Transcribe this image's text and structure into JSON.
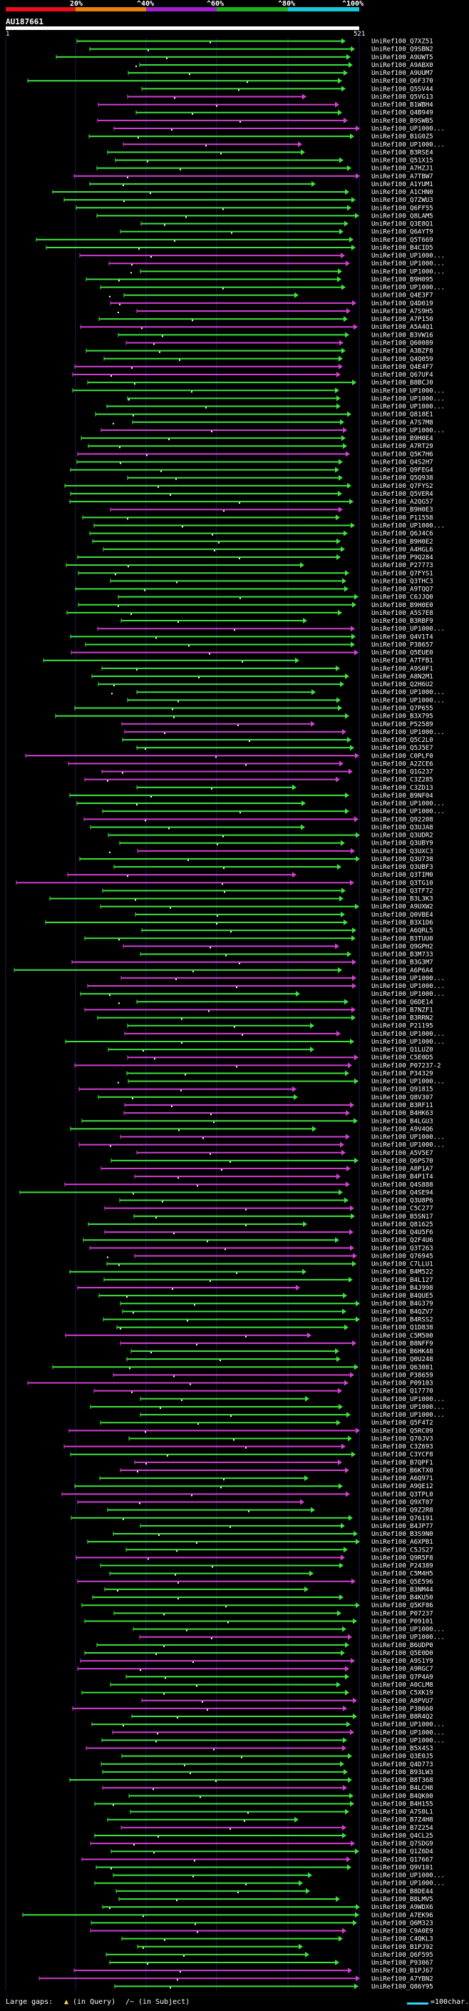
{
  "header": {
    "scale_labels": [
      "20%",
      "^40%",
      "^60%",
      "^80%",
      "^100%"
    ],
    "scale_colors": [
      "#e8101b",
      "#e8800c",
      "#a020d0",
      "#20b020",
      "#18c8d8"
    ],
    "query_id": "AU187661",
    "query_start": "1",
    "query_end": "521"
  },
  "legend": {
    "large_gaps_label": "Large gaps:",
    "query_gap_label": "(in Query)",
    "subject_gap_label": "(in Subject)",
    "scale_label": "=100char."
  },
  "colors": {
    "green": "#3ee23e",
    "magenta": "#d040d0",
    "grid": "#1a1a55",
    "arrow": "#3ee23e"
  },
  "hits": [
    "UniRef100_Q7XZ51",
    "UniRef100_Q9SBN2",
    "UniRef100_A9UWT5",
    "UniRef100_A9ABX0",
    "UniRef100_A9UUM7",
    "UniRef100_Q6F370",
    "UniRef100_Q5SV44",
    "UniRef100_Q5VG13",
    "UniRef100_B1WBH4",
    "UniRef100_Q4B949",
    "UniRef100_B9SWB5",
    "UniRef100_UP1000...",
    "UniRef100_B1G0Z5",
    "UniRef100_UP1000...",
    "UniRef100_B3RSE4",
    "UniRef100_Q51X15",
    "UniRef100_A7HZJ1",
    "UniRef100_A7TBW7",
    "UniRef100_A1YUM1",
    "UniRef100_A1CHN0",
    "UniRef100_Q7ZWU3",
    "UniRef100_Q6FF55",
    "UniRef100_Q8LAM5",
    "UniRef100_Q3E8Q1",
    "UniRef100_Q6AYT9",
    "UniRef100_Q5T669",
    "UniRef100_B4CID5",
    "UniRef100_UP1000...",
    "UniRef100_UP1000...",
    "UniRef100_UP1000...",
    "UniRef100_B9H095",
    "UniRef100_UP1000...",
    "UniRef100_Q4E3F7",
    "UniRef100_Q4D019",
    "UniRef100_A7S9H5",
    "UniRef100_A7P150",
    "UniRef100_A5A4Q1",
    "UniRef100_B3VW16",
    "UniRef100_Q60089",
    "UniRef100_A3BZF8",
    "UniRef100_Q4Q059",
    "UniRef100_Q4E4F7",
    "UniRef100_Q67UF4",
    "UniRef100_B8BCJ0",
    "UniRef100_UP1000...",
    "UniRef100_UP1000...",
    "UniRef100_UP1000...",
    "UniRef100_Q818E1",
    "UniRef100_A7S7M8",
    "UniRef100_UP1000...",
    "UniRef100_B9H0E4",
    "UniRef100_A7RT29",
    "UniRef100_Q5K7H6",
    "UniRef100_Q4S2H7",
    "UniRef100_Q9FEG4",
    "UniRef100_Q5Q938",
    "UniRef100_Q7FYS2",
    "UniRef100_Q5VER4",
    "UniRef100_A2QG57",
    "UniRef100_B9H0E3",
    "UniRef100_P11558",
    "UniRef100_UP1000...",
    "UniRef100_Q6J4C6",
    "UniRef100_B9H0E2",
    "UniRef100_A4HGL6",
    "UniRef100_P9Q284",
    "UniRef100_P27773",
    "UniRef100_Q7FYS1",
    "UniRef100_Q3THC3",
    "UniRef100_A9TQQ7",
    "UniRef100_C6JJQ0",
    "UniRef100_B9H0E0",
    "UniRef100_A5S7E8",
    "UniRef100_B3RBF9",
    "UniRef100_UP1000...",
    "UniRef100_Q4V1T4",
    "UniRef100_P38657",
    "UniRef100_Q5EUE0",
    "UniRef100_A7TFB1",
    "UniRef100_A9S0F1",
    "UniRef100_A8N2M1",
    "UniRef100_Q2H6U2",
    "UniRef100_UP1000...",
    "UniRef100_UP1000...",
    "UniRef100_Q7P655",
    "UniRef100_B3X795",
    "UniRef100_P52589",
    "UniRef100_UP1000...",
    "UniRef100_Q5C2L0",
    "UniRef100_Q5J5E7",
    "UniRef100_C0PLF0",
    "UniRef100_A2ZCE6",
    "UniRef100_Q1G237",
    "UniRef100_C3Z285",
    "UniRef100_C3ZD13",
    "UniRef100_B9NF04",
    "UniRef100_UP1000...",
    "UniRef100_UP1000...",
    "UniRef100_Q92208",
    "UniRef100_Q3UJA8",
    "UniRef100_Q3UDR2",
    "UniRef100_Q3UBY9",
    "UniRef100_Q3UXC3",
    "UniRef100_Q3U738",
    "UniRef100_Q3UBF3",
    "UniRef100_Q3TIM0",
    "UniRef100_Q3TG10",
    "UniRef100_Q3TF72",
    "UniRef100_B3L3K3",
    "UniRef100_A9UXW2",
    "UniRef100_Q0VBE4",
    "UniRef100_B3X1D6",
    "UniRef100_A6QRL5",
    "UniRef100_B3TUU0",
    "UniRef100_Q9GPH2",
    "UniRef100_B3M733",
    "UniRef100_B3G3M7",
    "UniRef100_A6P6A4",
    "UniRef100_UP1000...",
    "UniRef100_UP1000...",
    "UniRef100_UP1000...",
    "UniRef100_Q6DE14",
    "UniRef100_B7NZF1",
    "UniRef100_B3RRN2",
    "UniRef100_P21195",
    "UniRef100_UP1000...",
    "UniRef100_UP1000...",
    "UniRef100_Q1LUZ0",
    "UniRef100_C5E0D5",
    "UniRef100_P07237-2",
    "UniRef100_P34329",
    "UniRef100_UP1000...",
    "UniRef100_Q91815",
    "UniRef100_Q8V307",
    "UniRef100_B3RF11",
    "UniRef100_B4HK63",
    "UniRef100_B4LGU3",
    "UniRef100_A9V4Q6",
    "UniRef100_UP1000...",
    "UniRef100_UP1000...",
    "UniRef100_A5V5E7",
    "UniRef100_Q6PS70",
    "UniRef100_A8P1A7",
    "UniRef100_B4P1T4",
    "UniRef100_Q4S888",
    "UniRef100_Q4SE94",
    "UniRef100_Q3U8P6",
    "UniRef100_C5C277",
    "UniRef100_B5SN17",
    "UniRef100_Q81625",
    "UniRef100_Q4U5F6",
    "UniRef100_Q2F4U6",
    "UniRef100_Q3T263",
    "UniRef100_Q76945",
    "UniRef100_C7LLU1",
    "UniRef100_B4M522",
    "UniRef100_B4L127",
    "UniRef100_B4J998",
    "UniRef100_B4QUE5",
    "UniRef100_B4G379",
    "UniRef100_B4QZV7",
    "UniRef100_B4RSS2",
    "UniRef100_Q1D838",
    "UniRef100_C5M500",
    "UniRef100_B8NFF9",
    "UniRef100_B6HK48",
    "UniRef100_Q0U248",
    "UniRef100_Q63081",
    "UniRef100_P38659",
    "UniRef100_P09103",
    "UniRef100_Q17770",
    "UniRef100_UP1000...",
    "UniRef100_UP1000...",
    "UniRef100_UP1000...",
    "UniRef100_Q5F4T2",
    "UniRef100_Q5RC09",
    "UniRef100_Q70JV3",
    "UniRef100_C3Z693",
    "UniRef100_C3YCF8",
    "UniRef100_B7QPF1",
    "UniRef100_B6KTX0",
    "UniRef100_A6Q971",
    "UniRef100_A9QE12",
    "UniRef100_Q3TPL0",
    "UniRef100_Q9XT07",
    "UniRef100_Q9Z2R8",
    "UniRef100_Q76191",
    "UniRef100_B4JP77",
    "UniRef100_B3S9N0",
    "UniRef100_A6XPB1",
    "UniRef100_C5JS27",
    "UniRef100_Q9R5F8",
    "UniRef100_P24389",
    "UniRef100_C5M4H5",
    "UniRef100_Q5E596",
    "UniRef100_B3NM44",
    "UniRef100_B4KU50",
    "UniRef100_Q5KF86",
    "UniRef100_P07237",
    "UniRef100_P09101",
    "UniRef100_UP1000...",
    "UniRef100_UP1000...",
    "UniRef100_B6UDP0",
    "UniRef100_Q5E0D0",
    "UniRef100_A9S1Y9",
    "UniRef100_A9RGC7",
    "UniRef100_Q7P4A9",
    "UniRef100_A0CLM8",
    "UniRef100_C5XK19",
    "UniRef100_A8PVU7",
    "UniRef100_P38660",
    "UniRef100_B8R4Q2",
    "UniRef100_UP1000...",
    "UniRef100_UP1000...",
    "UniRef100_UP1000...",
    "UniRef100_B5X4S3",
    "UniRef100_Q3E0J5",
    "UniRef100_Q4D773",
    "UniRef100_B93LW3",
    "UniRef100_B8T368",
    "UniRef100_B4LCH8",
    "UniRef100_B4QK00",
    "UniRef100_B4H155",
    "UniRef100_A7S0L1",
    "UniRef100_B7Z4H8",
    "UniRef100_B7Z254",
    "UniRef100_Q4CL25",
    "UniRef100_Q7SDG9",
    "UniRef100_Q1Z6D4",
    "UniRef100_Q17667",
    "UniRef100_Q9V101",
    "UniRef100_UP1000...",
    "UniRef100_UP1000...",
    "UniRef100_B8DE44",
    "UniRef100_B8LMV5",
    "UniRef100_A9WDX6",
    "UniRef100_A7EK96",
    "UniRef100_Q6M323",
    "UniRef100_C9A0E9",
    "UniRef100_C4QKL3",
    "UniRef100_B1PJ92",
    "UniRef100_Q6F595",
    "UniRef100_P93067",
    "UniRef100_B1PJ67",
    "UniRef100_A7YBN2",
    "UniRef100_Q86Y95"
  ]
}
